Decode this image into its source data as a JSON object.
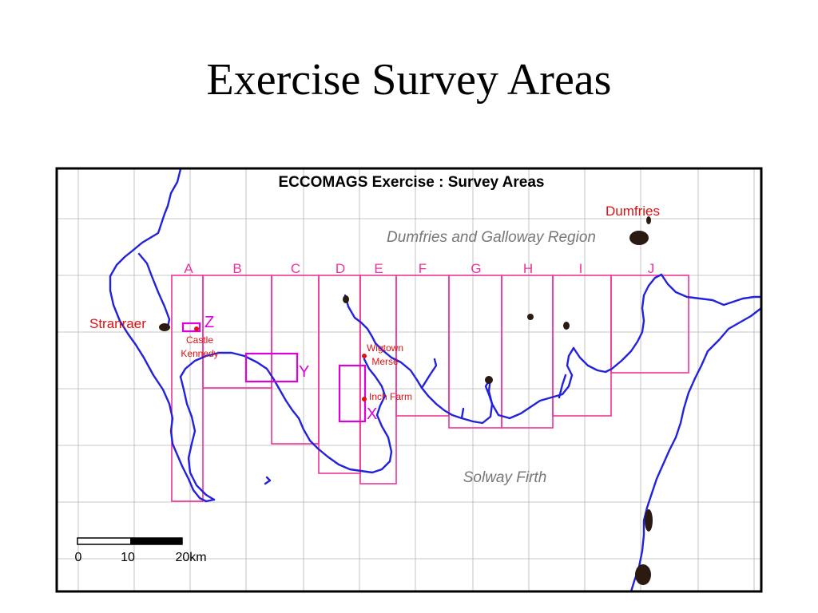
{
  "slide": {
    "title": "Exercise Survey Areas"
  },
  "map": {
    "title": "ECCOMAGS Exercise : Survey Areas",
    "region_label": "Dumfries and Galloway Region",
    "sea_label": "Solway Firth",
    "colors": {
      "coast": "#2222dd",
      "area": "#ee3399",
      "site": "#dd00dd",
      "town": "#dd1111",
      "grid": "#b5b5b5",
      "frame": "#000000"
    },
    "towns": [
      {
        "name": "Stranraer"
      },
      {
        "name": "Dumfries"
      }
    ],
    "places": [
      {
        "name": "Castle Kennedy",
        "lines": [
          "Castle",
          "Kennedy"
        ]
      },
      {
        "name": "Wigtown Merse",
        "lines": [
          "Wigtown",
          "Merse"
        ]
      },
      {
        "name": "Inch Farm",
        "lines": [
          "Inch Farm"
        ]
      }
    ],
    "survey_columns": [
      "A",
      "B",
      "C",
      "D",
      "E",
      "F",
      "G",
      "H",
      "I",
      "J"
    ],
    "sites": [
      "Z",
      "Y",
      "X"
    ],
    "scale_bar": {
      "labels": [
        "0",
        "10",
        "20km"
      ]
    }
  }
}
